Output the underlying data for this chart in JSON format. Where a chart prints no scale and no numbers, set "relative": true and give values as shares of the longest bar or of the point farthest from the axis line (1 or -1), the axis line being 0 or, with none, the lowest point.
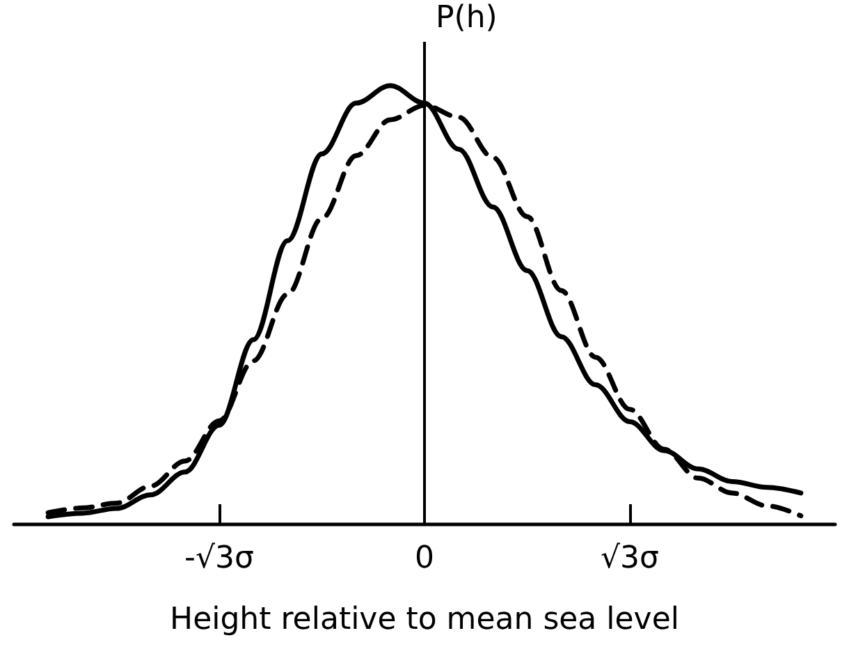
{
  "chart_data": {
    "type": "line",
    "relative": true,
    "xlabel": "Height relative to mean sea level",
    "ylabel": "P(h)",
    "categories": [
      null,
      null,
      null,
      null,
      null,
      null,
      "-√3σ",
      null,
      null,
      null,
      null,
      null,
      "0",
      null,
      null,
      null,
      null,
      null,
      "√3σ",
      null,
      null,
      null,
      null,
      null,
      null
    ],
    "ref_lines": [
      {
        "axis": "x",
        "value": "0",
        "color": "#000000"
      }
    ],
    "grid": false,
    "marker": "none",
    "series": [
      {
        "color": "#000000",
        "line_style": "solid",
        "values": [
          null,
          0.016,
          0.024,
          0.035,
          0.066,
          0.118,
          0.225,
          0.42,
          0.646,
          0.844,
          0.96,
          1,
          0.96,
          0.855,
          0.723,
          0.578,
          0.427,
          0.317,
          0.233,
          0.167,
          0.125,
          0.096,
          0.083,
          0.07,
          null
        ]
      },
      {
        "color": "#000000",
        "line_style": "dashed",
        "values": [
          null,
          0.025,
          0.036,
          0.047,
          0.086,
          0.143,
          0.235,
          0.372,
          0.524,
          0.697,
          0.84,
          0.922,
          0.955,
          0.928,
          0.836,
          0.701,
          0.532,
          0.38,
          0.261,
          0.17,
          0.104,
          0.07,
          0.041,
          0.018,
          null
        ]
      }
    ]
  }
}
